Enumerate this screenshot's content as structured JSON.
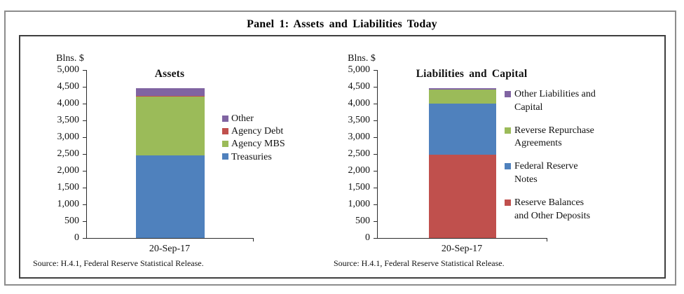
{
  "panel": {
    "title": "Panel 1: Assets and Liabilities Today"
  },
  "chart_data": [
    {
      "type": "bar",
      "stacked": true,
      "title": "Assets",
      "unit_label": "Blns. $",
      "xlabel": "",
      "ylabel": "Blns. $",
      "categories": [
        "20-Sep-17"
      ],
      "series": [
        {
          "name": "Treasuries",
          "color": "#4F81BD",
          "values": [
            2450
          ]
        },
        {
          "name": "Agency MBS",
          "color": "#9BBB59",
          "values": [
            1775
          ]
        },
        {
          "name": "Agency Debt",
          "color": "#C0504D",
          "values": [
            5
          ]
        },
        {
          "name": "Other",
          "color": "#8064A2",
          "values": [
            230
          ]
        }
      ],
      "total": 4460,
      "ylim": [
        0,
        5000
      ],
      "ytick_step": 500,
      "ytick_labels": [
        "0",
        "500",
        "1,000",
        "1,500",
        "2,000",
        "2,500",
        "3,000",
        "3,500",
        "4,000",
        "4,500",
        "5,000"
      ],
      "grid": false,
      "legend_position": "right",
      "legend": [
        {
          "name": "Other",
          "color": "#8064A2",
          "lines": [
            "Other"
          ]
        },
        {
          "name": "Agency Debt",
          "color": "#C0504D",
          "lines": [
            "Agency Debt"
          ]
        },
        {
          "name": "Agency MBS",
          "color": "#9BBB59",
          "lines": [
            "Agency MBS"
          ]
        },
        {
          "name": "Treasuries",
          "color": "#4F81BD",
          "lines": [
            "Treasuries"
          ]
        }
      ],
      "source": "Source: H.4.1, Federal Reserve Statistical Release."
    },
    {
      "type": "bar",
      "stacked": true,
      "title": "Liabilities and Capital",
      "unit_label": "Blns. $",
      "xlabel": "",
      "ylabel": "Blns. $",
      "categories": [
        "20-Sep-17"
      ],
      "series": [
        {
          "name": "Reserve Balances and Other Deposits",
          "color": "#C0504D",
          "values": [
            2480
          ]
        },
        {
          "name": "Federal Reserve Notes",
          "color": "#4F81BD",
          "values": [
            1520
          ]
        },
        {
          "name": "Reverse Repurchase Agreements",
          "color": "#9BBB59",
          "values": [
            415
          ]
        },
        {
          "name": "Other Liabilities and Capital",
          "color": "#8064A2",
          "values": [
            45
          ]
        }
      ],
      "total": 4460,
      "ylim": [
        0,
        5000
      ],
      "ytick_step": 500,
      "ytick_labels": [
        "0",
        "500",
        "1,000",
        "1,500",
        "2,000",
        "2,500",
        "3,000",
        "3,500",
        "4,000",
        "4,500",
        "5,000"
      ],
      "grid": false,
      "legend_position": "right",
      "legend": [
        {
          "name": "Other Liabilities and Capital",
          "color": "#8064A2",
          "lines": [
            "Other Liabilities and",
            "Capital"
          ]
        },
        {
          "name": "Reverse Repurchase Agreements",
          "color": "#9BBB59",
          "lines": [
            "Reverse Repurchase",
            "Agreements"
          ]
        },
        {
          "name": "Federal Reserve Notes",
          "color": "#4F81BD",
          "lines": [
            "Federal Reserve",
            "Notes"
          ]
        },
        {
          "name": "Reserve Balances and Other Deposits",
          "color": "#C0504D",
          "lines": [
            "Reserve Balances",
            "and Other Deposits"
          ]
        }
      ],
      "source": "Source: H.4.1, Federal Reserve Statistical Release."
    }
  ]
}
